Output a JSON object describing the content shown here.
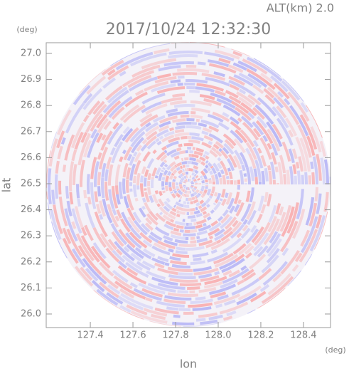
{
  "chart_data": {
    "type": "radar-ppi",
    "title": "2017/10/24 12:32:30",
    "subtitle": "ALT(km) 2.0",
    "x_label": "lon",
    "y_label": "lat",
    "x_unit": "(deg)",
    "y_unit": "(deg)",
    "xlim": [
      127.193,
      128.527
    ],
    "ylim": [
      25.948,
      27.041
    ],
    "xticks": [
      127.4,
      127.6,
      127.8,
      {
        "value": 128.0,
        "label": "128.0"
      },
      128.2,
      128.4
    ],
    "yticks": [
      {
        "value": 26.0,
        "label": "26.0"
      },
      26.1,
      26.2,
      26.3,
      26.4,
      26.5,
      26.6,
      26.7,
      26.8,
      26.9,
      {
        "value": 27.0,
        "label": "27.0"
      }
    ]
  }
}
